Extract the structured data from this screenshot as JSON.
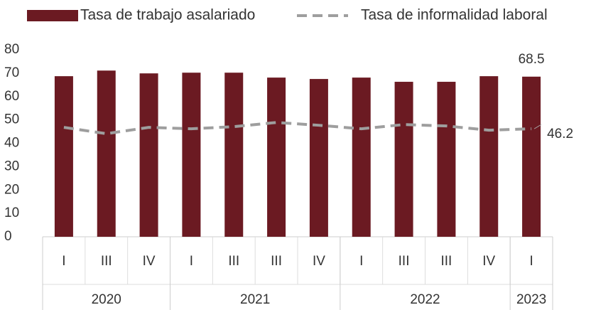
{
  "chart_data": {
    "type": "bar_line",
    "categories": [
      "I",
      "III",
      "IV",
      "I",
      "III",
      "III",
      "IV",
      "I",
      "III",
      "III",
      "IV",
      "I"
    ],
    "x_groups": [
      {
        "label": "2020",
        "size": 3
      },
      {
        "label": "2021",
        "size": 4
      },
      {
        "label": "2022",
        "size": 4
      },
      {
        "label": "2023",
        "size": 1
      }
    ],
    "series": [
      {
        "name": "Tasa de trabajo asalariado",
        "type": "bar",
        "color": "#6b1a22",
        "values": [
          68.7,
          71.1,
          69.9,
          70.2,
          70.2,
          68.1,
          67.5,
          68.1,
          66.3,
          66.3,
          68.7,
          68.5
        ]
      },
      {
        "name": "Tasa de informalidad laboral",
        "type": "line",
        "color": "#9e9e9e",
        "dashed": true,
        "values": [
          46.8,
          44.1,
          46.8,
          46.2,
          47.1,
          48.9,
          47.7,
          46.2,
          48.0,
          47.4,
          45.6,
          46.2
        ]
      }
    ],
    "ylim": [
      0,
      80
    ],
    "yticks": [
      0,
      10,
      20,
      30,
      40,
      50,
      60,
      70,
      80
    ],
    "grid": false,
    "legend": "top"
  }
}
